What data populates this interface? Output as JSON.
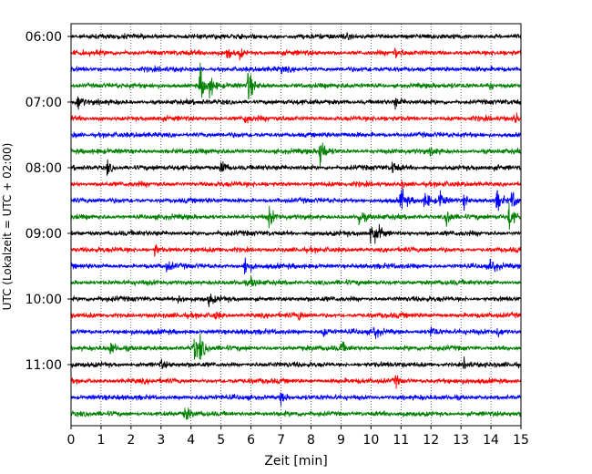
{
  "chart_data": {
    "type": "line",
    "title": "",
    "xlabel": "Zeit  [min]",
    "ylabel": "UTC (Lokalzeit = UTC + 02:00)",
    "xlim": [
      0,
      15
    ],
    "x_ticks": [
      0,
      1,
      2,
      3,
      4,
      5,
      6,
      7,
      8,
      9,
      10,
      11,
      12,
      13,
      14,
      15
    ],
    "y_ticks": [
      "06:00",
      "07:00",
      "08:00",
      "09:00",
      "10:00",
      "11:00"
    ],
    "grid": "vertical dotted lines at each minute",
    "color_cycle": [
      "#000000",
      "#ff0000",
      "#0000ff",
      "#008000"
    ],
    "traces": [
      {
        "start": "06:00",
        "color": "#000000",
        "events": [
          [
            9.1,
            0.12
          ]
        ]
      },
      {
        "start": "06:15",
        "color": "#ff0000",
        "events": [
          [
            5.2,
            0.35
          ],
          [
            5.6,
            0.3
          ],
          [
            10.8,
            0.3
          ]
        ]
      },
      {
        "start": "06:30",
        "color": "#0000ff",
        "events": [
          [
            7.0,
            0.12
          ]
        ]
      },
      {
        "start": "06:45",
        "color": "#008000",
        "events": [
          [
            4.3,
            1.0
          ],
          [
            4.6,
            0.6
          ],
          [
            5.9,
            0.9
          ],
          [
            13.9,
            0.35
          ]
        ]
      },
      {
        "start": "07:00",
        "color": "#000000",
        "events": [
          [
            0.2,
            0.45
          ],
          [
            10.8,
            0.25
          ]
        ]
      },
      {
        "start": "07:15",
        "color": "#ff0000",
        "events": [
          [
            5.8,
            0.3
          ],
          [
            14.8,
            0.3
          ]
        ]
      },
      {
        "start": "07:30",
        "color": "#0000ff",
        "events": [
          [
            0.1,
            0.15
          ]
        ]
      },
      {
        "start": "07:45",
        "color": "#008000",
        "events": [
          [
            8.3,
            0.95
          ],
          [
            12.0,
            0.2
          ]
        ]
      },
      {
        "start": "08:00",
        "color": "#000000",
        "events": [
          [
            1.2,
            0.35
          ],
          [
            5.0,
            0.55
          ],
          [
            10.7,
            0.3
          ]
        ]
      },
      {
        "start": "08:15",
        "color": "#ff0000",
        "events": [
          [
            11.0,
            0.2
          ]
        ]
      },
      {
        "start": "08:30",
        "color": "#0000ff",
        "events": [
          [
            11.0,
            0.75
          ],
          [
            11.8,
            0.5
          ],
          [
            12.3,
            0.5
          ],
          [
            13.1,
            0.35
          ],
          [
            14.2,
            0.55
          ],
          [
            14.7,
            0.5
          ]
        ]
      },
      {
        "start": "08:45",
        "color": "#008000",
        "events": [
          [
            6.6,
            0.5
          ],
          [
            9.6,
            0.45
          ],
          [
            12.5,
            0.6
          ],
          [
            14.6,
            0.7
          ]
        ]
      },
      {
        "start": "09:00",
        "color": "#000000",
        "events": [
          [
            10.0,
            0.75
          ],
          [
            10.3,
            0.3
          ]
        ]
      },
      {
        "start": "09:15",
        "color": "#ff0000",
        "events": [
          [
            2.8,
            0.35
          ]
        ]
      },
      {
        "start": "09:30",
        "color": "#0000ff",
        "events": [
          [
            3.2,
            0.25
          ],
          [
            5.8,
            0.6
          ],
          [
            14.0,
            0.45
          ]
        ]
      },
      {
        "start": "09:45",
        "color": "#008000",
        "events": [
          [
            6.0,
            0.2
          ]
        ]
      },
      {
        "start": "10:00",
        "color": "#000000",
        "events": [
          [
            3.6,
            0.35
          ],
          [
            4.6,
            0.3
          ]
        ]
      },
      {
        "start": "10:15",
        "color": "#ff0000",
        "events": [
          [
            4.8,
            0.2
          ],
          [
            7.6,
            0.2
          ]
        ]
      },
      {
        "start": "10:30",
        "color": "#0000ff",
        "events": [
          [
            8.4,
            0.35
          ],
          [
            10.1,
            0.35
          ],
          [
            12.0,
            0.3
          ],
          [
            14.2,
            0.3
          ]
        ]
      },
      {
        "start": "10:45",
        "color": "#008000",
        "events": [
          [
            1.3,
            0.35
          ],
          [
            4.1,
            0.65
          ],
          [
            4.3,
            0.5
          ],
          [
            9.0,
            0.3
          ]
        ]
      },
      {
        "start": "11:00",
        "color": "#000000",
        "events": [
          [
            3.0,
            0.2
          ],
          [
            13.1,
            0.25
          ]
        ]
      },
      {
        "start": "11:15",
        "color": "#ff0000",
        "events": [
          [
            10.8,
            0.3
          ]
        ]
      },
      {
        "start": "11:30",
        "color": "#0000ff",
        "events": [
          [
            7.0,
            0.35
          ]
        ]
      },
      {
        "start": "11:45",
        "color": "#008000",
        "events": [
          [
            3.8,
            0.35
          ]
        ]
      }
    ]
  }
}
